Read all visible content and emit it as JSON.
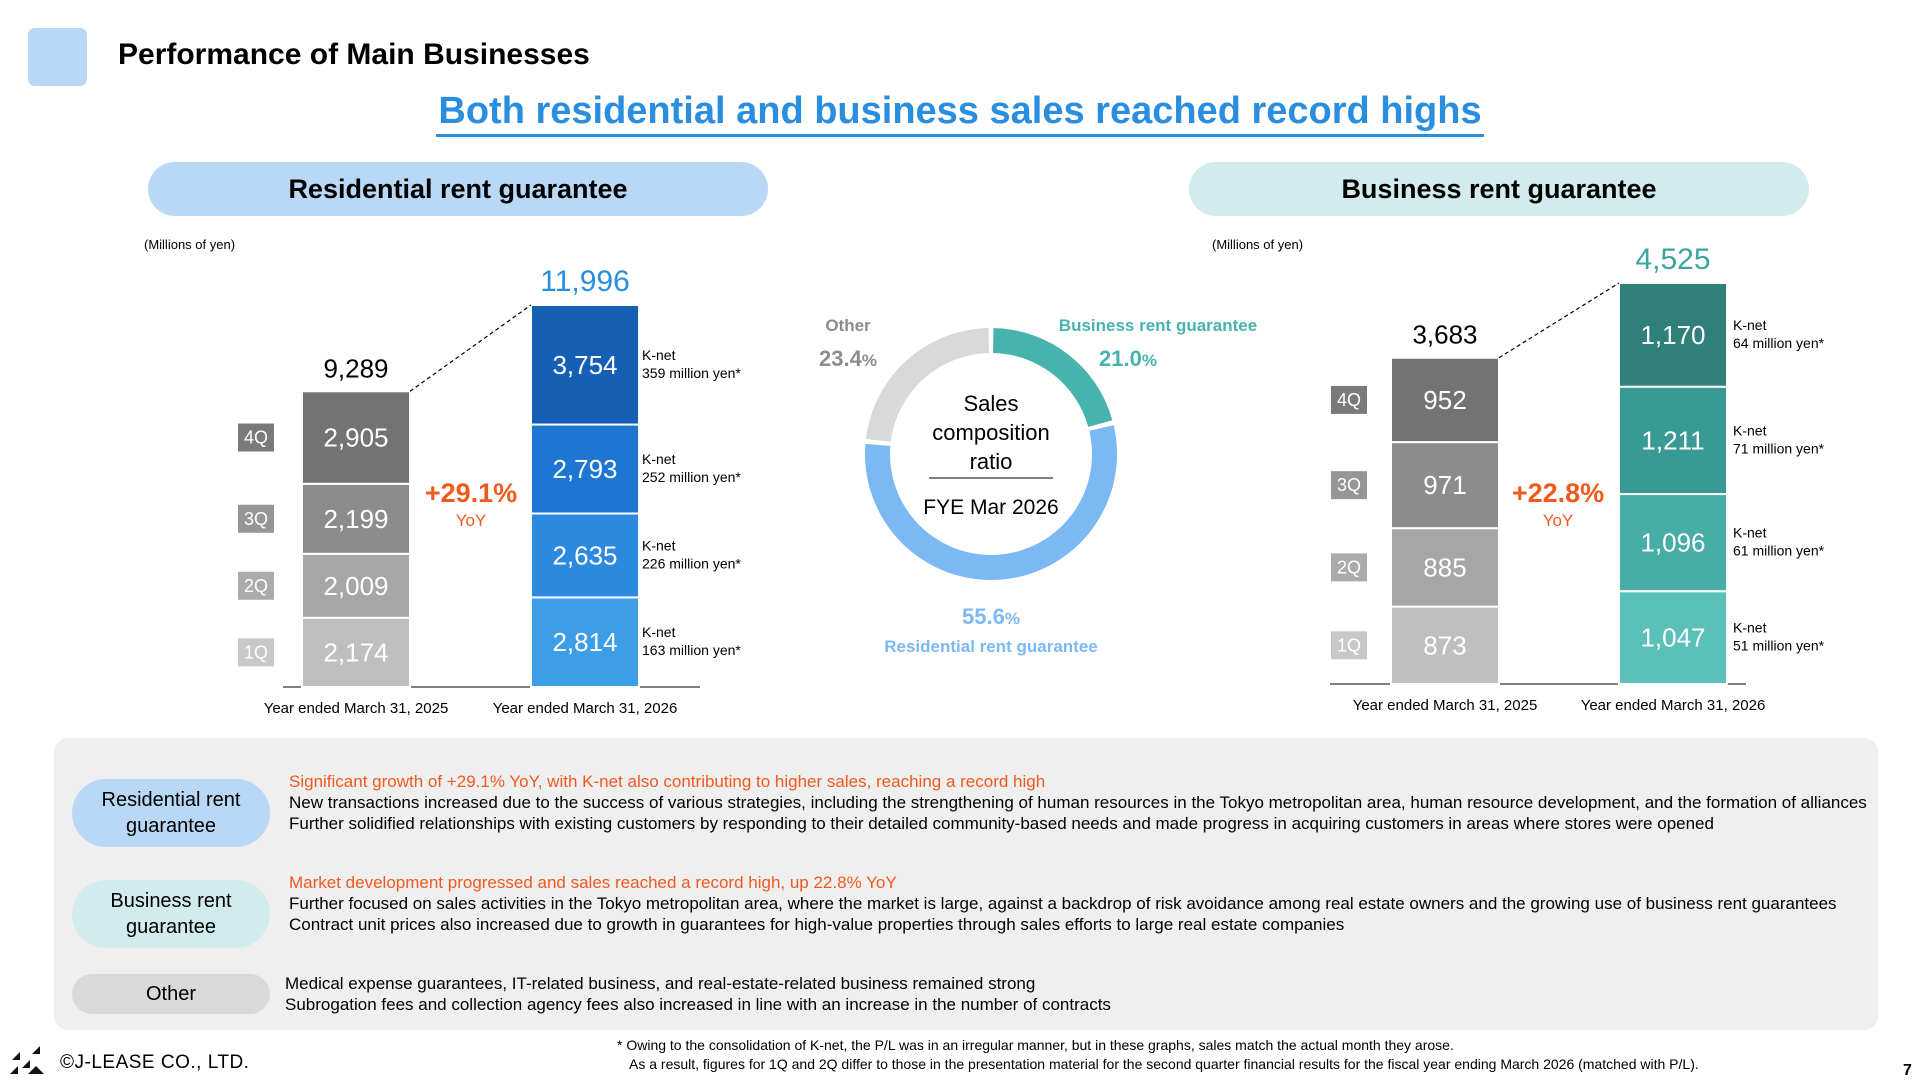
{
  "header": {
    "title": "Performance of Main Businesses",
    "headline": "Both residential and business sales reached record highs"
  },
  "residential": {
    "section_title": "Residential rent guarantee",
    "unit": "(Millions of yen)"
  },
  "business": {
    "section_title": "Business rent guarantee",
    "unit": "(Millions of yen)"
  },
  "chart_data": [
    {
      "type": "bar",
      "stacked": true,
      "title": "Residential rent guarantee",
      "ylabel": "(Millions of yen)",
      "categories": [
        "Year ended March 31, 2025",
        "Year ended March 31, 2026"
      ],
      "quarter_labels": [
        "1Q",
        "2Q",
        "3Q",
        "4Q"
      ],
      "series": [
        {
          "name": "1Q",
          "values": [
            2174,
            2814
          ]
        },
        {
          "name": "2Q",
          "values": [
            2009,
            2635
          ]
        },
        {
          "name": "3Q",
          "values": [
            2199,
            2793
          ]
        },
        {
          "name": "4Q",
          "values": [
            2905,
            3754
          ]
        }
      ],
      "totals": [
        "9,289",
        "11,996"
      ],
      "segment_labels": [
        [
          "2,174",
          "2,009",
          "2,199",
          "2,905"
        ],
        [
          "2,814",
          "2,635",
          "2,793",
          "3,754"
        ]
      ],
      "growth": "+29.1%",
      "growth_sub": "YoY",
      "knet_notes": [
        [
          "K-net",
          "163 million yen*"
        ],
        [
          "K-net",
          "226 million yen*"
        ],
        [
          "K-net",
          "252 million yen*"
        ],
        [
          "K-net",
          "359 million yen*"
        ]
      ],
      "colors": {
        "prev": [
          "#bfbfbf",
          "#a6a6a6",
          "#8c8c8c",
          "#737373"
        ],
        "curr": [
          "#3d9ee8",
          "#2b8ae0",
          "#1c76d2",
          "#1560b4"
        ],
        "quarter_badge": [
          "#c8c8c8",
          "#ababab",
          "#969696",
          "#7a7a7a"
        ],
        "total_prev": "#000000",
        "total_curr": "#2a8ee0",
        "growth": "#f05a1e"
      }
    },
    {
      "type": "pie",
      "donut": true,
      "center_text": [
        "Sales",
        "composition",
        "ratio"
      ],
      "center_sub": "FYE Mar 2026",
      "slices": [
        {
          "name": "Business rent guarantee",
          "value": 21.0,
          "label": "21.0",
          "pct_sign": "%",
          "color": "#47b3ad"
        },
        {
          "name": "Residential rent guarantee",
          "value": 55.6,
          "label": "55.6",
          "pct_sign": "%",
          "color": "#7cb9f2"
        },
        {
          "name": "Other",
          "value": 23.4,
          "label": "23.4",
          "pct_sign": "%",
          "color": "#d9d9d9"
        }
      ]
    },
    {
      "type": "bar",
      "stacked": true,
      "title": "Business rent guarantee",
      "ylabel": "(Millions of yen)",
      "categories": [
        "Year ended March 31, 2025",
        "Year ended March 31, 2026"
      ],
      "quarter_labels": [
        "1Q",
        "2Q",
        "3Q",
        "4Q"
      ],
      "series": [
        {
          "name": "1Q",
          "values": [
            873,
            1047
          ]
        },
        {
          "name": "2Q",
          "values": [
            885,
            1096
          ]
        },
        {
          "name": "3Q",
          "values": [
            971,
            1211
          ]
        },
        {
          "name": "4Q",
          "values": [
            952,
            1170
          ]
        }
      ],
      "totals": [
        "3,683",
        "4,525"
      ],
      "segment_labels": [
        [
          "873",
          "885",
          "971",
          "952"
        ],
        [
          "1,047",
          "1,096",
          "1,211",
          "1,170"
        ]
      ],
      "growth": "+22.8%",
      "growth_sub": "YoY",
      "knet_notes": [
        [
          "K-net",
          "51 million yen*"
        ],
        [
          "K-net",
          "61 million yen*"
        ],
        [
          "K-net",
          "71 million yen*"
        ],
        [
          "K-net",
          "64 million yen*"
        ]
      ],
      "colors": {
        "prev": [
          "#bfbfbf",
          "#a6a6a6",
          "#8c8c8c",
          "#737373"
        ],
        "curr": [
          "#5bc0b9",
          "#47ada7",
          "#399a95",
          "#2f7f7b"
        ],
        "quarter_badge": [
          "#c8c8c8",
          "#ababab",
          "#969696",
          "#7a7a7a"
        ],
        "total_prev": "#000000",
        "total_curr": "#3aa5a0",
        "growth": "#f05a1e"
      }
    }
  ],
  "explanations": {
    "residential": {
      "label": "Residential rent guarantee",
      "highlight": "Significant growth of +29.1% YoY, with K-net also contributing to higher sales, reaching a record high",
      "lines": [
        "New transactions increased due to the success of various strategies, including the strengthening of human resources in the Tokyo metropolitan area, human resource development, and the formation of alliances",
        "Further solidified relationships with existing customers by responding to their detailed community-based needs and made progress in acquiring customers in areas where stores were opened"
      ]
    },
    "business": {
      "label": "Business rent guarantee",
      "highlight": "Market development progressed and sales reached a record high, up 22.8% YoY",
      "lines": [
        "Further focused on sales activities in the Tokyo metropolitan area, where the market is large, against a backdrop of risk avoidance among real estate owners and the growing use of business rent guarantees",
        "Contract unit prices also increased due to growth in guarantees for high-value properties through sales efforts to large real estate companies"
      ]
    },
    "other": {
      "label": "Other",
      "lines": [
        "Medical expense guarantees, IT-related business, and real-estate-related business remained strong",
        "Subrogation fees and collection agency fees also increased in line with an increase in the number of contracts"
      ]
    }
  },
  "footnote": {
    "line1": "* Owing to the consolidation of K-net, the P/L was in an irregular manner, but in these graphs, sales match the actual month they arose.",
    "line2": "As a result, figures for 1Q and 2Q differ to those in the presentation material for the second quarter financial results for the fiscal year ending March 2026 (matched with P/L)."
  },
  "footer": {
    "copyright": "©J-LEASE CO., LTD.",
    "page": "7"
  }
}
